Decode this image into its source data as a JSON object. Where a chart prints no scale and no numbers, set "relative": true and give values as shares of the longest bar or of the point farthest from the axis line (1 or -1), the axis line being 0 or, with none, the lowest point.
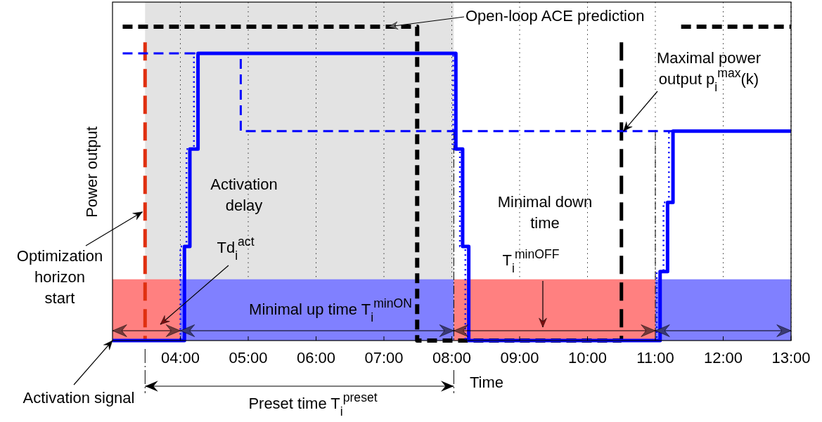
{
  "chart_data": {
    "type": "step",
    "relative": true,
    "xlabel": "Time",
    "ylabel": "Power output",
    "xlim": [
      3,
      13
    ],
    "xticks": [
      {
        "value": 4,
        "label": "04:00"
      },
      {
        "value": 5,
        "label": "05:00"
      },
      {
        "value": 6,
        "label": "06:00"
      },
      {
        "value": 7,
        "label": "07:00"
      },
      {
        "value": 8,
        "label": "08:00"
      },
      {
        "value": 9,
        "label": "09:00"
      },
      {
        "value": 10,
        "label": "10:00"
      },
      {
        "value": 11,
        "label": "11:00"
      },
      {
        "value": 12,
        "label": "12:00"
      },
      {
        "value": 13,
        "label": "13:00"
      }
    ],
    "grid": "x",
    "legend": false,
    "series": [
      {
        "type": "area",
        "color": "#ff8080",
        "x": [
          3,
          4
        ],
        "values": [
          0.195,
          0.195
        ]
      },
      {
        "type": "area",
        "color": "#8080ff",
        "x": [
          4,
          8.03
        ],
        "values": [
          0.195,
          0.195
        ]
      },
      {
        "type": "area",
        "color": "#ff8080",
        "x": [
          8.03,
          11
        ],
        "values": [
          0.195,
          0.195
        ]
      },
      {
        "type": "area",
        "color": "#8080ff",
        "x": [
          11,
          13
        ],
        "values": [
          0.195,
          0.195
        ]
      },
      {
        "color": "#000000",
        "line_style": "dashed",
        "x": [
          3.15,
          7.49,
          10.5
        ],
        "values": [
          1,
          0,
          0
        ]
      },
      {
        "color": "#000000",
        "line_style": "dashed",
        "x": [
          11.38,
          13
        ],
        "values": [
          1,
          1
        ]
      },
      {
        "color": "#0000ff",
        "line_style": "dashed",
        "x": [
          3.15,
          4.89,
          13
        ],
        "values": [
          0.915,
          0.667,
          0.667
        ]
      },
      {
        "color": "#0000ff",
        "line_style": "dotted",
        "x": [
          3,
          4.0,
          4.09,
          4.2,
          8.02,
          8.12,
          8.2,
          11.02,
          11.12,
          11.2,
          13
        ],
        "values": [
          0,
          0.3,
          0.61,
          0.915,
          0.61,
          0.3,
          0,
          0.22,
          0.44,
          0.667,
          0.667
        ]
      },
      {
        "color": "#0000ff",
        "line_style": "solid",
        "x": [
          3,
          4.06,
          4.14,
          4.26,
          8.06,
          8.16,
          8.25,
          11.07,
          11.18,
          11.26,
          13
        ],
        "values": [
          0,
          0.3,
          0.61,
          0.915,
          0.61,
          0.3,
          0,
          0.22,
          0.44,
          0.667,
          0.667
        ]
      }
    ],
    "ref_lines": [
      {
        "axis": "x",
        "value": 3.48,
        "color": "#e03010",
        "line_style": "dashed"
      },
      {
        "axis": "x",
        "value": 10.5,
        "color": "#000000",
        "line_style": "dashed"
      },
      {
        "axis": "x",
        "value": 8.03,
        "color": "#000000",
        "line_style": "dashed"
      },
      {
        "axis": "x",
        "value": 11.0,
        "color": "#000000",
        "line_style": "dashed"
      }
    ],
    "bands": [
      {
        "axis": "x",
        "from": 3.48,
        "to": 8.03,
        "color": "#e3e3e3"
      }
    ],
    "annotations": [
      {
        "text": "Open-loop ACE prediction",
        "x": 7.07,
        "y": 1
      },
      {
        "text": "Maximal power output p$_{i}$$^{max}$(k)",
        "x": 10.53,
        "y": 0.667
      },
      "Activation delay",
      "Td$_{i}$$^{act}$",
      "Minimal up time T$_{i}$$^{minON}$",
      "Minimal down time",
      "T$_{i}$$^{minOFF}$",
      {
        "text": "Optimization horizon start",
        "x": 3.44,
        "y": 0.41
      },
      {
        "text": "Activation signal",
        "x": 3,
        "y": 0
      },
      "Preset time T$_{i}$$^{preset}$"
    ]
  }
}
